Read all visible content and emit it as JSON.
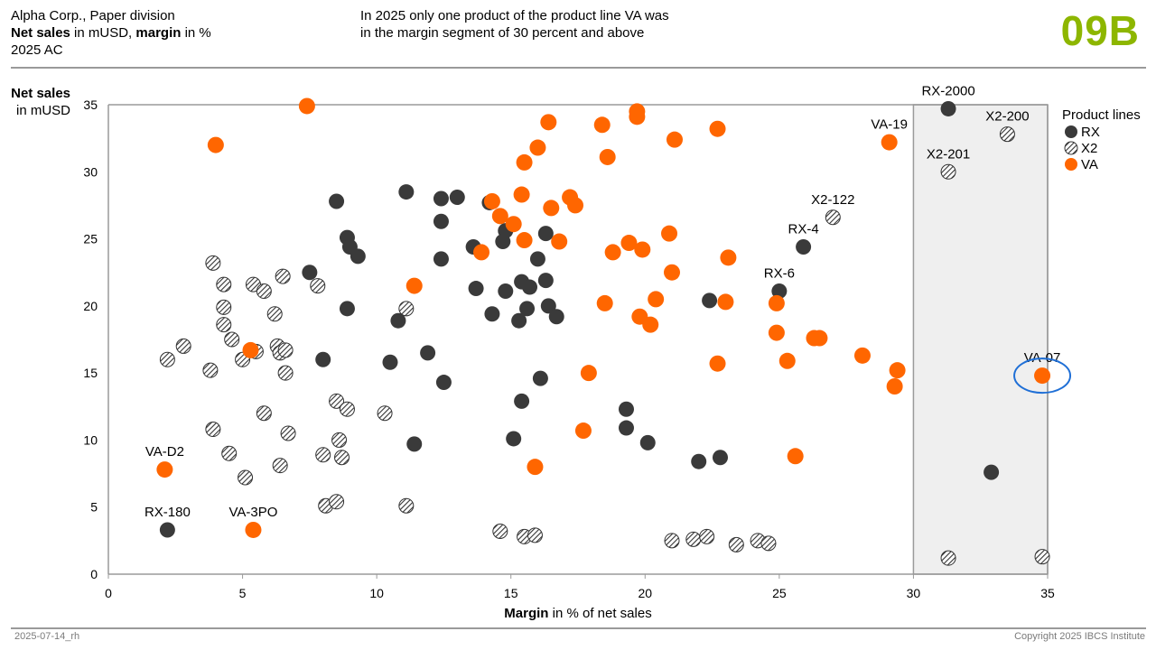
{
  "header": {
    "company": "Alpha Corp., Paper division",
    "measure_bold1": "Net sales",
    "measure_mid": " in mUSD, ",
    "measure_bold2": "margin",
    "measure_end": " in %",
    "scenario": "2025 AC",
    "message_line1": "In 2025 only one product of the product line VA was",
    "message_line2": "in the margin segment of 30 percent and above",
    "page_id": "09B"
  },
  "footer": {
    "date": "2025-07-14_rh",
    "copyright": "Copyright 2025 IBCS Institute"
  },
  "colors": {
    "RX": "#3a3a3a",
    "VA": "#ff6600",
    "highlight_ring": "#1f6fd6",
    "segment_fill": "#efefef",
    "page_id": "#8db600"
  },
  "chart_data": {
    "type": "scatter",
    "title": "",
    "ylabel_bold": "Net sales",
    "ylabel_rest": "in mUSD",
    "xlabel_bold": "Margin",
    "xlabel_rest": " in % of net sales",
    "xlim": [
      0,
      35
    ],
    "ylim": [
      0,
      35
    ],
    "xticks": [
      0,
      5,
      10,
      15,
      20,
      25,
      30,
      35
    ],
    "yticks": [
      0,
      5,
      10,
      15,
      20,
      25,
      30,
      35
    ],
    "grid": false,
    "highlight_segment": {
      "x_from": 30,
      "x_to": 35
    },
    "legend": {
      "title": "Product lines",
      "placement": "right",
      "entries": [
        "RX",
        "X2",
        "VA"
      ]
    },
    "series": [
      {
        "name": "RX",
        "points": [
          [
            2.2,
            3.3,
            "RX-180"
          ],
          [
            7.5,
            22.5
          ],
          [
            8.5,
            27.8
          ],
          [
            8.9,
            25.1
          ],
          [
            9.0,
            24.4
          ],
          [
            9.3,
            23.7
          ],
          [
            8.9,
            19.8
          ],
          [
            8.0,
            16.0
          ],
          [
            10.8,
            18.9
          ],
          [
            10.5,
            15.8
          ],
          [
            11.1,
            28.5
          ],
          [
            11.4,
            9.7
          ],
          [
            11.9,
            16.5
          ],
          [
            12.4,
            28.0
          ],
          [
            12.4,
            26.3
          ],
          [
            12.4,
            23.5
          ],
          [
            12.5,
            14.3
          ],
          [
            13.0,
            28.1
          ],
          [
            13.6,
            24.4
          ],
          [
            13.7,
            21.3
          ],
          [
            14.2,
            27.7
          ],
          [
            14.3,
            19.4
          ],
          [
            14.7,
            24.8
          ],
          [
            14.8,
            25.6
          ],
          [
            14.8,
            21.1
          ],
          [
            15.1,
            10.1
          ],
          [
            15.3,
            18.9
          ],
          [
            15.4,
            21.8
          ],
          [
            15.4,
            12.9
          ],
          [
            15.6,
            19.8
          ],
          [
            15.7,
            21.4
          ],
          [
            16.0,
            23.5
          ],
          [
            16.1,
            14.6
          ],
          [
            16.3,
            25.4
          ],
          [
            16.3,
            21.9
          ],
          [
            16.4,
            20.0
          ],
          [
            16.7,
            19.2
          ],
          [
            19.3,
            12.3
          ],
          [
            19.3,
            10.9
          ],
          [
            20.1,
            9.8
          ],
          [
            22.0,
            8.4
          ],
          [
            22.4,
            20.4
          ],
          [
            22.8,
            8.7
          ],
          [
            25.0,
            21.1,
            "RX-6"
          ],
          [
            25.9,
            24.4,
            "RX-4"
          ],
          [
            31.3,
            34.7,
            "RX-2000"
          ],
          [
            32.9,
            7.6
          ]
        ]
      },
      {
        "name": "X2",
        "points": [
          [
            2.2,
            16.0
          ],
          [
            2.8,
            17.0
          ],
          [
            3.8,
            15.2
          ],
          [
            3.9,
            23.2
          ],
          [
            3.9,
            10.8
          ],
          [
            4.3,
            21.6
          ],
          [
            4.3,
            19.9
          ],
          [
            4.3,
            18.6
          ],
          [
            4.5,
            9.0
          ],
          [
            4.6,
            17.5
          ],
          [
            5.0,
            16.0
          ],
          [
            5.1,
            7.2
          ],
          [
            5.4,
            21.6
          ],
          [
            5.5,
            16.6
          ],
          [
            5.8,
            21.1
          ],
          [
            5.8,
            12.0
          ],
          [
            6.2,
            19.4
          ],
          [
            6.3,
            17.0
          ],
          [
            6.4,
            16.5
          ],
          [
            6.4,
            8.1
          ],
          [
            6.5,
            22.2
          ],
          [
            6.6,
            16.7
          ],
          [
            6.6,
            15.0
          ],
          [
            6.7,
            10.5
          ],
          [
            7.8,
            21.5
          ],
          [
            8.0,
            8.9
          ],
          [
            8.1,
            5.1
          ],
          [
            8.5,
            12.9
          ],
          [
            8.5,
            5.4
          ],
          [
            8.6,
            10.0
          ],
          [
            8.7,
            8.7
          ],
          [
            8.9,
            12.3
          ],
          [
            10.3,
            12.0
          ],
          [
            11.1,
            19.8
          ],
          [
            11.1,
            5.1
          ],
          [
            14.6,
            3.2
          ],
          [
            15.5,
            2.8
          ],
          [
            15.9,
            2.9
          ],
          [
            21.0,
            2.5
          ],
          [
            21.8,
            2.6
          ],
          [
            22.3,
            2.8
          ],
          [
            23.4,
            2.2
          ],
          [
            24.2,
            2.5
          ],
          [
            24.6,
            2.3
          ],
          [
            27.0,
            26.6,
            "X2-122"
          ],
          [
            31.3,
            30.0,
            "X2-201"
          ],
          [
            31.3,
            1.2
          ],
          [
            33.5,
            32.8,
            "X2-200"
          ],
          [
            34.8,
            1.3
          ]
        ]
      },
      {
        "name": "VA",
        "points": [
          [
            2.1,
            7.8,
            "VA-D2"
          ],
          [
            4.0,
            32.0
          ],
          [
            5.3,
            16.7
          ],
          [
            5.4,
            3.3,
            "VA-3PO"
          ],
          [
            7.4,
            34.9
          ],
          [
            11.4,
            21.5
          ],
          [
            13.9,
            24.0
          ],
          [
            14.3,
            27.8
          ],
          [
            14.6,
            26.7
          ],
          [
            15.1,
            26.1
          ],
          [
            15.4,
            28.3
          ],
          [
            15.5,
            24.9
          ],
          [
            15.5,
            30.7
          ],
          [
            16.0,
            31.8
          ],
          [
            15.9,
            8.0
          ],
          [
            16.4,
            33.7
          ],
          [
            16.5,
            27.3
          ],
          [
            16.8,
            24.8
          ],
          [
            17.2,
            28.1
          ],
          [
            17.4,
            27.5
          ],
          [
            17.7,
            10.7
          ],
          [
            17.9,
            15.0
          ],
          [
            18.4,
            33.5
          ],
          [
            18.5,
            20.2
          ],
          [
            18.6,
            31.1
          ],
          [
            18.8,
            24.0
          ],
          [
            19.4,
            24.7
          ],
          [
            19.7,
            34.5
          ],
          [
            19.7,
            34.1
          ],
          [
            19.8,
            19.2
          ],
          [
            19.9,
            24.2
          ],
          [
            20.2,
            18.6
          ],
          [
            20.4,
            20.5
          ],
          [
            20.9,
            25.4
          ],
          [
            21.0,
            22.5
          ],
          [
            21.1,
            32.4
          ],
          [
            22.7,
            33.2
          ],
          [
            22.7,
            15.7
          ],
          [
            23.0,
            20.3
          ],
          [
            23.1,
            23.6
          ],
          [
            24.9,
            20.2
          ],
          [
            24.9,
            18.0
          ],
          [
            25.3,
            15.9
          ],
          [
            25.6,
            8.8
          ],
          [
            26.3,
            17.6
          ],
          [
            26.5,
            17.6
          ],
          [
            28.1,
            16.3
          ],
          [
            29.1,
            32.2,
            "VA-19"
          ],
          [
            29.3,
            14.0
          ],
          [
            29.4,
            15.2
          ],
          [
            34.8,
            14.8,
            "VA-07"
          ]
        ]
      }
    ],
    "highlighted_point": {
      "series": "VA",
      "label": "VA-07"
    }
  }
}
